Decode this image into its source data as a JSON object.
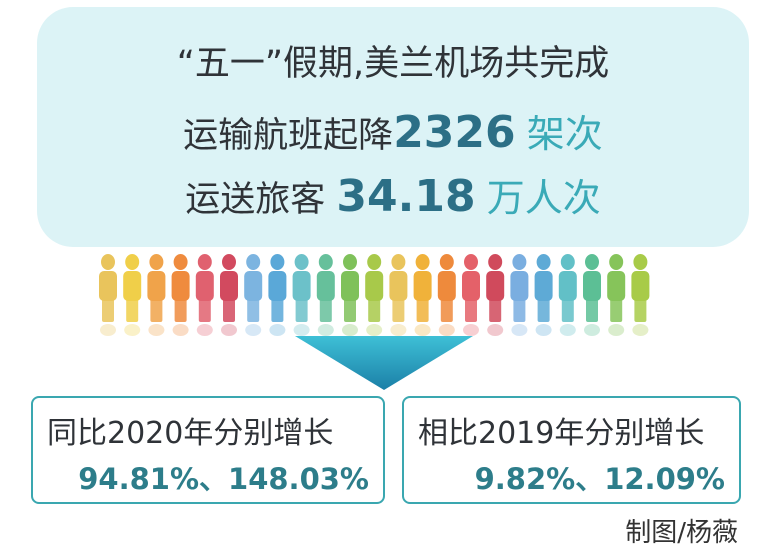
{
  "headline": {
    "line1": "“五一”假期,美兰机场共完成",
    "line2_prefix": "运输航班起降",
    "flights_value": "2326",
    "flights_unit": "架次",
    "line3_prefix": "运送旅客",
    "passengers_value": "34.18",
    "passengers_unit": "万人次"
  },
  "comparison_2020": {
    "title": "同比2020年分别增长",
    "values": "94.81%、148.03%"
  },
  "comparison_2019": {
    "title": "相比2019年分别增长",
    "values": "9.82%、12.09%"
  },
  "credit": "制图/杨薇",
  "colors": {
    "headline_bg": "#dcf3f6",
    "accent_dark": "#2c6f86",
    "accent": "#3aaab7",
    "card_border": "#3aa7b0",
    "arrow_top": "#3ec0d6",
    "arrow_bottom": "#1b7fa7"
  },
  "people_colors": [
    "#e9c45c",
    "#f0cf49",
    "#f0a34a",
    "#ef8b3e",
    "#e0616f",
    "#d24a5f",
    "#7cb4e0",
    "#5aa8d8",
    "#6cc1c9",
    "#66c09b",
    "#7fc15a",
    "#a8c94a",
    "#e9c45c",
    "#f0b23a",
    "#ee8a3c",
    "#e46169",
    "#d04a5c",
    "#7aaee0",
    "#5eaad6",
    "#62c0c7",
    "#5cbf95",
    "#86c45a",
    "#a8cb48"
  ]
}
